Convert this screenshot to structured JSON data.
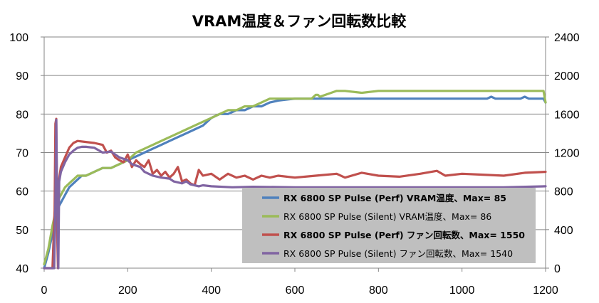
{
  "chart_data": {
    "type": "line",
    "title": "VRAM温度＆ファン回転数比較",
    "xlabel": "",
    "ylabel": "",
    "y2label": "",
    "xlim": [
      0,
      1200
    ],
    "ylim": [
      40,
      100
    ],
    "y2lim": [
      0,
      2400
    ],
    "x_ticks": [
      0,
      200,
      400,
      600,
      800,
      1000,
      1200
    ],
    "y_ticks": [
      40,
      50,
      60,
      70,
      80,
      90,
      100
    ],
    "y2_ticks": [
      0,
      400,
      800,
      1200,
      1600,
      2000,
      2400
    ],
    "grid": "horizontal",
    "legend_position": "bottom-right",
    "colors": {
      "perf_vram": "#4f81bd",
      "silent_vram": "#9bbb59",
      "perf_fan": "#c0504d",
      "silent_fan": "#8064a2",
      "grid": "#868686",
      "legend_bg": "#bfbfbf"
    },
    "series": [
      {
        "name": "RX 6800 SP Pulse (Perf) VRAM温度、Max= 85",
        "axis": "left",
        "bold": true,
        "color": "#4f81bd",
        "x": [
          0,
          10,
          20,
          30,
          35,
          40,
          50,
          60,
          70,
          80,
          90,
          100,
          120,
          140,
          160,
          180,
          200,
          220,
          240,
          260,
          280,
          300,
          320,
          340,
          360,
          380,
          400,
          420,
          440,
          460,
          480,
          500,
          520,
          540,
          560,
          600,
          640,
          660,
          700,
          800,
          900,
          1000,
          1060,
          1070,
          1080,
          1140,
          1150,
          1160,
          1195,
          1200
        ],
        "y": [
          40,
          44,
          49,
          53,
          56,
          57,
          59,
          61,
          62,
          63,
          64,
          64,
          65,
          66,
          66,
          67,
          68,
          69,
          70,
          71,
          72,
          73,
          74,
          75,
          76,
          77,
          79,
          80,
          80,
          81,
          81,
          82,
          82,
          83,
          83.5,
          84,
          84,
          84,
          84,
          84,
          84,
          84,
          84,
          84.5,
          84,
          84,
          84.5,
          84,
          84,
          83
        ]
      },
      {
        "name": "RX 6800 SP Pulse (Silent) VRAM温度、Max= 86",
        "axis": "left",
        "bold": false,
        "color": "#9bbb59",
        "x": [
          0,
          10,
          20,
          30,
          35,
          40,
          50,
          60,
          70,
          80,
          90,
          100,
          120,
          140,
          160,
          180,
          200,
          220,
          240,
          260,
          280,
          300,
          320,
          340,
          360,
          380,
          400,
          420,
          440,
          460,
          480,
          500,
          520,
          540,
          560,
          600,
          640,
          650,
          655,
          660,
          700,
          720,
          760,
          800,
          900,
          1000,
          1100,
          1195,
          1200
        ],
        "y": [
          41,
          45,
          51,
          56,
          58,
          59,
          61,
          62,
          63,
          64,
          64,
          64,
          65,
          66,
          66,
          67,
          68,
          70,
          71,
          72,
          73,
          74,
          75,
          76,
          77,
          78,
          79,
          80,
          81,
          81,
          82,
          82,
          83,
          84,
          84,
          84,
          84,
          85,
          85,
          84.5,
          86,
          86,
          85.5,
          86,
          86,
          86,
          86,
          86,
          83
        ]
      },
      {
        "name": "RX 6800 SP Pulse (Perf) ファン回転数、Max= 1550",
        "axis": "right",
        "bold": true,
        "color": "#c0504d",
        "x": [
          0,
          20,
          25,
          27,
          29,
          31,
          33,
          35,
          40,
          50,
          60,
          70,
          80,
          100,
          120,
          140,
          150,
          160,
          170,
          180,
          190,
          200,
          210,
          220,
          230,
          240,
          250,
          260,
          270,
          280,
          290,
          300,
          310,
          320,
          330,
          340,
          350,
          360,
          370,
          380,
          400,
          420,
          440,
          460,
          480,
          500,
          520,
          540,
          560,
          600,
          650,
          700,
          720,
          760,
          800,
          850,
          900,
          940,
          960,
          1000,
          1050,
          1100,
          1150,
          1200
        ],
        "y": [
          0,
          0,
          600,
          1500,
          1550,
          400,
          0,
          900,
          1050,
          1150,
          1250,
          1300,
          1320,
          1310,
          1300,
          1280,
          1200,
          1220,
          1150,
          1120,
          1100,
          1180,
          1050,
          1120,
          1080,
          1050,
          1120,
          980,
          1020,
          960,
          1000,
          940,
          980,
          1050,
          900,
          920,
          880,
          860,
          1020,
          960,
          980,
          920,
          980,
          940,
          960,
          920,
          960,
          940,
          960,
          940,
          960,
          980,
          940,
          990,
          960,
          950,
          980,
          1010,
          960,
          980,
          970,
          960,
          990,
          1000
        ]
      },
      {
        "name": "RX 6800 SP Pulse (Silent) ファン回転数、Max= 1540",
        "axis": "right",
        "bold": false,
        "color": "#8064a2",
        "x": [
          0,
          24,
          27,
          29,
          31,
          34,
          36,
          40,
          50,
          60,
          70,
          80,
          90,
          100,
          120,
          140,
          160,
          180,
          200,
          210,
          230,
          240,
          260,
          280,
          300,
          310,
          330,
          340,
          350,
          360,
          370,
          380,
          400,
          450,
          500,
          600,
          700,
          800,
          900,
          1000,
          1100,
          1200
        ],
        "y": [
          0,
          0,
          700,
          1540,
          800,
          0,
          900,
          1000,
          1100,
          1180,
          1220,
          1250,
          1260,
          1260,
          1250,
          1200,
          1210,
          1150,
          1120,
          1080,
          1050,
          1000,
          960,
          940,
          930,
          900,
          880,
          900,
          870,
          860,
          850,
          860,
          850,
          840,
          845,
          840,
          840,
          840,
          840,
          840,
          840,
          850
        ]
      }
    ]
  }
}
